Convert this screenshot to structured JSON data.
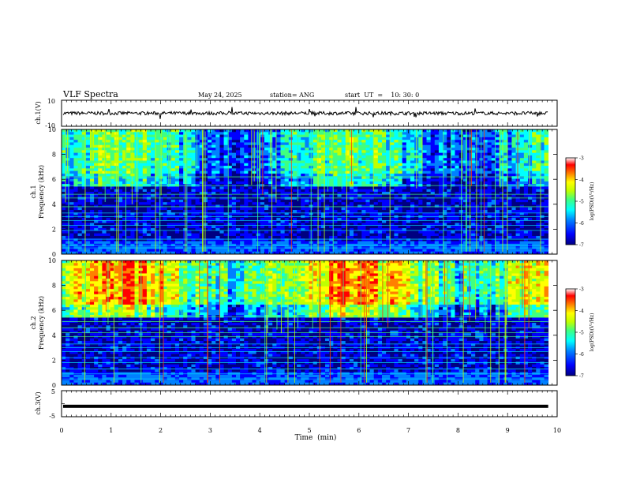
{
  "header": {
    "title": "VLF Spectra",
    "date": "May 24, 2025",
    "station": "station= ANG",
    "start": "start  UT  =    10: 30: 0"
  },
  "chart_data": [
    {
      "type": "line",
      "name": "ch1-waveform",
      "ylabel": "ch.1(V)",
      "ylim": [
        -10,
        10
      ],
      "yticks": [
        "10",
        "-10"
      ],
      "xlim": [
        0,
        10
      ],
      "data_end_min": 9.82,
      "description": "noise trace near 0 V"
    },
    {
      "type": "heatmap",
      "name": "ch1-spectrogram",
      "ylabel_line1": "ch.1",
      "ylabel_line2": "Frequency (kHz)",
      "ylim": [
        0,
        10
      ],
      "yticks": [
        "0",
        "2",
        "4",
        "6",
        "8",
        "10"
      ],
      "xlim": [
        0,
        10
      ],
      "data_end_min": 9.82,
      "tone_lines_khz": [
        0.5,
        0.7,
        1.2,
        1.9,
        2.3,
        2.7,
        3.0,
        3.3,
        3.8,
        4.5,
        4.8,
        5.5,
        6.2
      ],
      "colorbar": {
        "label": "log(PSD)(V²/Hz)",
        "range": [
          -7,
          -3
        ],
        "ticks": [
          "-3",
          "-4",
          "-5",
          "-6",
          "-7"
        ]
      }
    },
    {
      "type": "heatmap",
      "name": "ch2-spectrogram",
      "ylabel_line1": "ch.2",
      "ylabel_line2": "Frequency (kHz)",
      "ylim": [
        0,
        10
      ],
      "yticks": [
        "0",
        "2",
        "4",
        "6",
        "8",
        "10"
      ],
      "xlim": [
        0,
        10
      ],
      "data_end_min": 9.82,
      "tone_lines_khz": [
        0.5,
        0.9,
        1.3,
        1.8,
        2.2,
        2.7,
        3.0,
        3.3,
        3.9,
        4.2,
        4.6,
        5.1,
        5.5
      ],
      "colorbar": {
        "label": "log(PSD)(V²/Hz)",
        "range": [
          -7,
          -3
        ],
        "ticks": [
          "-3",
          "-4",
          "-5",
          "-6",
          "-7"
        ]
      }
    },
    {
      "type": "line",
      "name": "ch3-waveform",
      "ylabel": "ch.3(V)",
      "ylim": [
        -5,
        5
      ],
      "yticks": [
        "5",
        "0",
        "-5"
      ],
      "xlim": [
        0,
        10
      ],
      "data_end_min": 9.82,
      "description": "flat trace at about -1 V"
    }
  ],
  "xaxis": {
    "label": "Time  (min)",
    "ticks": [
      "0",
      "1",
      "2",
      "3",
      "4",
      "5",
      "6",
      "7",
      "8",
      "9",
      "10"
    ]
  },
  "colormap": [
    "#000080",
    "#0000ff",
    "#0080ff",
    "#00ffff",
    "#40ff80",
    "#c0ff00",
    "#ffff00",
    "#ff8000",
    "#ff0000",
    "#ffffff"
  ]
}
